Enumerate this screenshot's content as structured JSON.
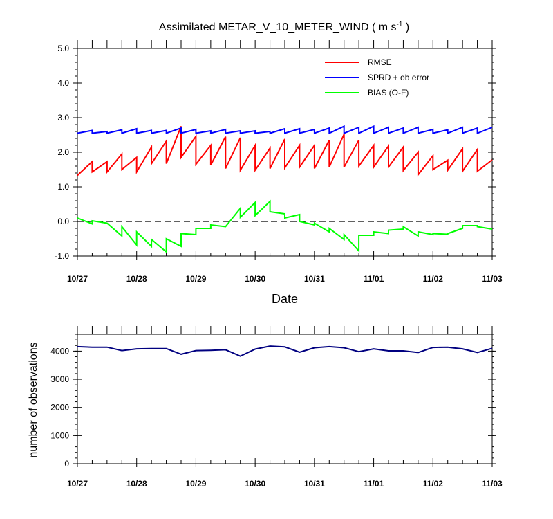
{
  "chart_data": [
    {
      "type": "line",
      "title": "Assimilated METAR_V_10_METER_WIND ( m s",
      "title_superscript": "-1",
      "title_close": " )",
      "xlabel": "Date",
      "ylabel": "",
      "xlim": [
        "10/27",
        "11/03"
      ],
      "x_tick_labels": [
        "10/27",
        "10/28",
        "10/29",
        "10/30",
        "10/31",
        "11/01",
        "11/02",
        "11/03"
      ],
      "ylim": [
        -1.0,
        5.0
      ],
      "y_tick_labels": [
        "-1.0",
        "0.0",
        "1.0",
        "2.0",
        "3.0",
        "4.0",
        "5.0"
      ],
      "y_ticks": [
        -1.0,
        0.0,
        1.0,
        2.0,
        3.0,
        4.0,
        5.0
      ],
      "reference_line": 0.0,
      "x_days": [
        0,
        0.25,
        0.25,
        0.5,
        0.5,
        0.75,
        0.75,
        1.0,
        1.0,
        1.25,
        1.25,
        1.5,
        1.5,
        1.75,
        1.75,
        2.0,
        2.0,
        2.25,
        2.25,
        2.5,
        2.5,
        2.75,
        2.75,
        3.0,
        3.0,
        3.25,
        3.25,
        3.5,
        3.5,
        3.75,
        3.75,
        4.0,
        4.0,
        4.25,
        4.25,
        4.5,
        4.5,
        4.75,
        4.75,
        5.0,
        5.0,
        5.25,
        5.25,
        5.5,
        5.5,
        5.75,
        5.75,
        6.0,
        6.0,
        6.25,
        6.25,
        6.5,
        6.5,
        6.75,
        6.75,
        7.0
      ],
      "series": [
        {
          "name": "RMSE",
          "color": "#ff0000",
          "values": [
            1.33,
            1.73,
            1.43,
            1.73,
            1.43,
            1.95,
            1.5,
            1.85,
            1.43,
            2.15,
            1.67,
            2.32,
            1.67,
            2.75,
            1.85,
            2.46,
            1.65,
            2.2,
            1.63,
            2.45,
            1.53,
            2.42,
            1.48,
            2.2,
            1.48,
            2.12,
            1.53,
            2.38,
            1.55,
            2.2,
            1.57,
            2.2,
            1.53,
            2.35,
            1.57,
            2.52,
            1.57,
            2.35,
            1.6,
            2.2,
            1.57,
            2.18,
            1.57,
            2.15,
            1.47,
            2.0,
            1.35,
            1.9,
            1.5,
            1.77,
            1.48,
            2.1,
            1.45,
            2.08,
            1.45,
            1.78
          ]
        },
        {
          "name": "SPRD + ob error",
          "color": "#0000ff",
          "values": [
            2.55,
            2.63,
            2.55,
            2.6,
            2.55,
            2.65,
            2.55,
            2.68,
            2.55,
            2.63,
            2.55,
            2.63,
            2.55,
            2.7,
            2.55,
            2.66,
            2.55,
            2.62,
            2.55,
            2.66,
            2.55,
            2.62,
            2.55,
            2.62,
            2.55,
            2.6,
            2.55,
            2.68,
            2.55,
            2.68,
            2.55,
            2.66,
            2.55,
            2.7,
            2.55,
            2.75,
            2.55,
            2.72,
            2.55,
            2.75,
            2.55,
            2.72,
            2.55,
            2.7,
            2.55,
            2.72,
            2.55,
            2.66,
            2.55,
            2.65,
            2.55,
            2.72,
            2.55,
            2.7,
            2.55,
            2.72
          ]
        },
        {
          "name": "BIAS (O-F)",
          "color": "#00ff00",
          "values": [
            0.1,
            -0.07,
            0.02,
            -0.05,
            -0.05,
            -0.42,
            -0.15,
            -0.68,
            -0.3,
            -0.72,
            -0.52,
            -0.88,
            -0.5,
            -0.72,
            -0.35,
            -0.38,
            -0.2,
            -0.2,
            -0.1,
            -0.15,
            -0.15,
            0.38,
            0.12,
            0.55,
            0.17,
            0.58,
            0.28,
            0.22,
            0.1,
            0.2,
            0.0,
            -0.1,
            -0.05,
            -0.3,
            -0.2,
            -0.52,
            -0.38,
            -0.85,
            -0.4,
            -0.4,
            -0.3,
            -0.35,
            -0.25,
            -0.22,
            -0.15,
            -0.42,
            -0.3,
            -0.38,
            -0.35,
            -0.37,
            -0.35,
            -0.2,
            -0.12,
            -0.12,
            -0.15,
            -0.22
          ]
        }
      ],
      "legend_position": "top-right",
      "grid": false
    },
    {
      "type": "line",
      "title": "",
      "xlabel": "",
      "ylabel": "number of observations",
      "xlim": [
        "10/27",
        "11/03"
      ],
      "x_tick_labels": [
        "10/27",
        "10/28",
        "10/29",
        "10/30",
        "10/31",
        "11/01",
        "11/02",
        "11/03"
      ],
      "ylim": [
        0,
        4600
      ],
      "y_tick_labels": [
        "0",
        "1000",
        "2000",
        "3000",
        "4000"
      ],
      "y_ticks": [
        0,
        1000,
        2000,
        3000,
        4000
      ],
      "x_days": [
        0,
        0.25,
        0.5,
        0.75,
        1.0,
        1.25,
        1.5,
        1.75,
        2.0,
        2.25,
        2.5,
        2.75,
        3.0,
        3.25,
        3.5,
        3.75,
        4.0,
        4.25,
        4.5,
        4.75,
        5.0,
        5.25,
        5.5,
        5.75,
        6.0,
        6.25,
        6.5,
        6.75,
        7.0
      ],
      "series": [
        {
          "color": "#000080",
          "values": [
            4160,
            4140,
            4140,
            4020,
            4080,
            4090,
            4090,
            3890,
            4020,
            4030,
            4050,
            3820,
            4070,
            4180,
            4150,
            3960,
            4120,
            4160,
            4120,
            3980,
            4080,
            4010,
            4010,
            3950,
            4130,
            4140,
            4080,
            3950,
            4100
          ]
        }
      ],
      "grid": false
    }
  ]
}
